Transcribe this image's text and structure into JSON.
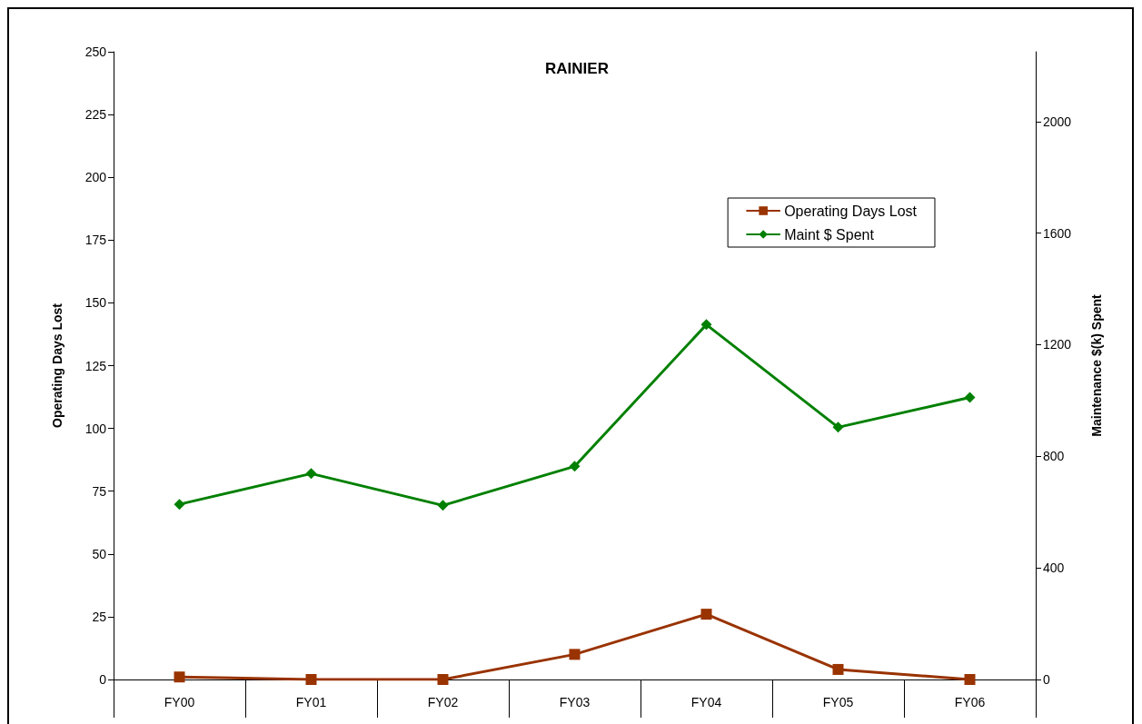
{
  "chart_data": {
    "type": "line",
    "title": "RAINIER",
    "ylabel": "Operating Days Lost",
    "y2label": "Maintenance $(k) Spent",
    "categories": [
      "FY00",
      "FY01",
      "FY02",
      "FY03",
      "FY04",
      "FY05",
      "FY06"
    ],
    "series": [
      {
        "name": "Operating Days Lost",
        "color": "#993300",
        "marker": "square",
        "values": [
          1,
          0,
          0,
          10,
          26,
          4,
          0
        ]
      },
      {
        "name": "Maint $ Spent",
        "color": "#008000",
        "marker": "diamond",
        "axis": "y2",
        "values": [
          628,
          738,
          624,
          764,
          1272,
          904,
          1011
        ]
      }
    ],
    "ylim": [
      0,
      250
    ],
    "yticks": [
      0,
      25,
      50,
      75,
      100,
      125,
      150,
      175,
      200,
      225,
      250
    ],
    "y2lim": [
      0,
      2250
    ],
    "y2ticks": [
      0,
      400,
      800,
      1200,
      1600,
      2000
    ],
    "grid": false,
    "legend": "top right",
    "line_style": "solid"
  }
}
